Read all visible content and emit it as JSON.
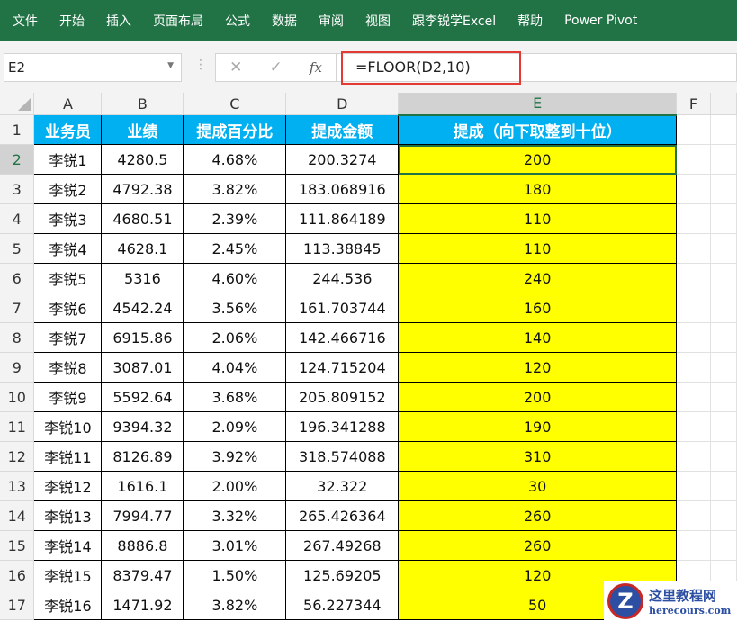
{
  "ribbon": {
    "tabs": [
      "文件",
      "开始",
      "插入",
      "页面布局",
      "公式",
      "数据",
      "审阅",
      "视图",
      "跟李锐学Excel",
      "帮助",
      "Power Pivot"
    ]
  },
  "formula_bar": {
    "name_box": "E2",
    "cancel_icon": "✕",
    "enter_icon": "✓",
    "fx": "fx",
    "formula": "=FLOOR(D2,10)"
  },
  "columns": [
    "A",
    "B",
    "C",
    "D",
    "E",
    "F"
  ],
  "headers": [
    "业务员",
    "业绩",
    "提成百分比",
    "提成金额",
    "提成（向下取整到十位）"
  ],
  "rows": [
    [
      "李锐1",
      "4280.5",
      "4.68%",
      "200.3274",
      "200"
    ],
    [
      "李锐2",
      "4792.38",
      "3.82%",
      "183.068916",
      "180"
    ],
    [
      "李锐3",
      "4680.51",
      "2.39%",
      "111.864189",
      "110"
    ],
    [
      "李锐4",
      "4628.1",
      "2.45%",
      "113.38845",
      "110"
    ],
    [
      "李锐5",
      "5316",
      "4.60%",
      "244.536",
      "240"
    ],
    [
      "李锐6",
      "4542.24",
      "3.56%",
      "161.703744",
      "160"
    ],
    [
      "李锐7",
      "6915.86",
      "2.06%",
      "142.466716",
      "140"
    ],
    [
      "李锐8",
      "3087.01",
      "4.04%",
      "124.715204",
      "120"
    ],
    [
      "李锐9",
      "5592.64",
      "3.68%",
      "205.809152",
      "200"
    ],
    [
      "李锐10",
      "9394.32",
      "2.09%",
      "196.341288",
      "190"
    ],
    [
      "李锐11",
      "8126.89",
      "3.92%",
      "318.574088",
      "310"
    ],
    [
      "李锐12",
      "1616.1",
      "2.00%",
      "32.322",
      "30"
    ],
    [
      "李锐13",
      "7994.77",
      "3.32%",
      "265.426364",
      "260"
    ],
    [
      "李锐14",
      "8886.8",
      "3.01%",
      "267.49268",
      "260"
    ],
    [
      "李锐15",
      "8379.47",
      "1.50%",
      "125.69205",
      "120"
    ],
    [
      "李锐16",
      "1471.92",
      "3.82%",
      "56.227344",
      "50"
    ]
  ],
  "watermark": {
    "title": "这里教程网",
    "url": "herecours.com",
    "letter": "Z"
  },
  "colors": {
    "ribbon": "#217346",
    "header_fill": "#00b0f0",
    "result_fill": "#ffff00",
    "highlight": "#e53935"
  }
}
